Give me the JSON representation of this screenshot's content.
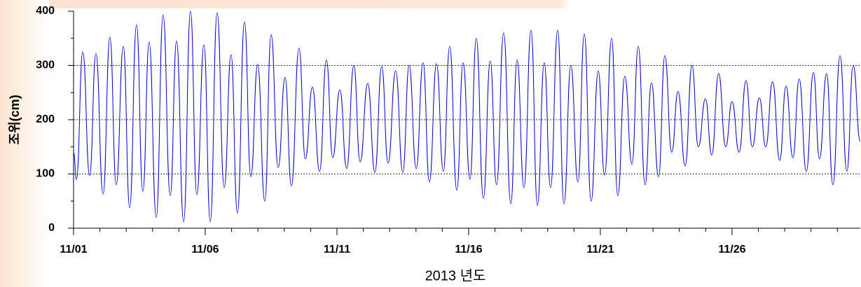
{
  "chart_data": {
    "type": "line",
    "ylabel": "조위(cm)",
    "xlabel": "2013 년도",
    "xlim": [
      1,
      30.87
    ],
    "ylim": [
      0,
      400
    ],
    "xticks": [
      {
        "value": 1,
        "label": "11/01"
      },
      {
        "value": 6,
        "label": "11/06"
      },
      {
        "value": 11,
        "label": "11/11"
      },
      {
        "value": 16,
        "label": "11/16"
      },
      {
        "value": 21,
        "label": "11/21"
      },
      {
        "value": 26,
        "label": "11/26"
      }
    ],
    "xminorticks": [
      2,
      3,
      4,
      5,
      7,
      8,
      9,
      10,
      12,
      13,
      14,
      15,
      17,
      18,
      19,
      20,
      22,
      23,
      24,
      25,
      27,
      28,
      29,
      30
    ],
    "yticks": [
      0,
      100,
      200,
      300,
      400
    ],
    "yminorticks": [
      50,
      150,
      250,
      350
    ],
    "grid_y": [
      100,
      200,
      300
    ],
    "series": [
      {
        "color": "#0000dd",
        "x": [
          1.0,
          1.11,
          1.35,
          1.61,
          1.85,
          2.12,
          2.38,
          2.62,
          2.89,
          3.13,
          3.39,
          3.63,
          3.87,
          4.14,
          4.4,
          4.67,
          4.91,
          5.18,
          5.44,
          5.68,
          5.95,
          6.19,
          6.45,
          6.72,
          6.98,
          7.22,
          7.49,
          7.73,
          7.99,
          8.26,
          8.5,
          8.77,
          9.03,
          9.27,
          9.56,
          9.8,
          10.07,
          10.34,
          10.6,
          10.84,
          11.11,
          11.37,
          11.64,
          11.88,
          12.17,
          12.44,
          12.7,
          12.94,
          13.23,
          13.5,
          13.74,
          14.01,
          14.27,
          14.51,
          14.78,
          15.04,
          15.28,
          15.55,
          15.79,
          16.05,
          16.29,
          16.56,
          16.82,
          17.06,
          17.33,
          17.6,
          17.84,
          18.1,
          18.37,
          18.61,
          18.87,
          19.11,
          19.38,
          19.62,
          19.88,
          20.15,
          20.39,
          20.65,
          20.92,
          21.16,
          21.43,
          21.66,
          21.93,
          22.2,
          22.44,
          22.7,
          22.94,
          23.21,
          23.45,
          23.71,
          23.95,
          24.22,
          24.48,
          24.72,
          24.99,
          25.23,
          25.49,
          25.76,
          26.0,
          26.27,
          26.53,
          26.77,
          27.04,
          27.28,
          27.54,
          27.81,
          28.05,
          28.31,
          28.55,
          28.82,
          29.09,
          29.32,
          29.59,
          29.83,
          30.1,
          30.36,
          30.6,
          30.87
        ],
        "values": [
          140,
          90,
          325,
          97,
          322,
          63,
          352,
          80,
          335,
          38,
          375,
          68,
          343,
          20,
          393,
          60,
          345,
          12,
          400,
          62,
          338,
          12,
          397,
          75,
          320,
          28,
          380,
          95,
          302,
          50,
          357,
          112,
          278,
          78,
          332,
          128,
          260,
          105,
          310,
          130,
          255,
          110,
          300,
          122,
          267,
          103,
          298,
          120,
          290,
          103,
          300,
          110,
          305,
          85,
          303,
          105,
          335,
          70,
          305,
          90,
          350,
          55,
          308,
          80,
          360,
          45,
          310,
          75,
          365,
          42,
          305,
          75,
          365,
          45,
          300,
          85,
          358,
          50,
          290,
          98,
          350,
          60,
          280,
          118,
          335,
          80,
          268,
          95,
          318,
          140,
          252,
          115,
          300,
          150,
          238,
          135,
          285,
          150,
          233,
          140,
          272,
          150,
          240,
          150,
          270,
          125,
          262,
          130,
          275,
          105,
          287,
          128,
          285,
          80,
          318,
          105,
          300,
          160
        ]
      }
    ]
  }
}
